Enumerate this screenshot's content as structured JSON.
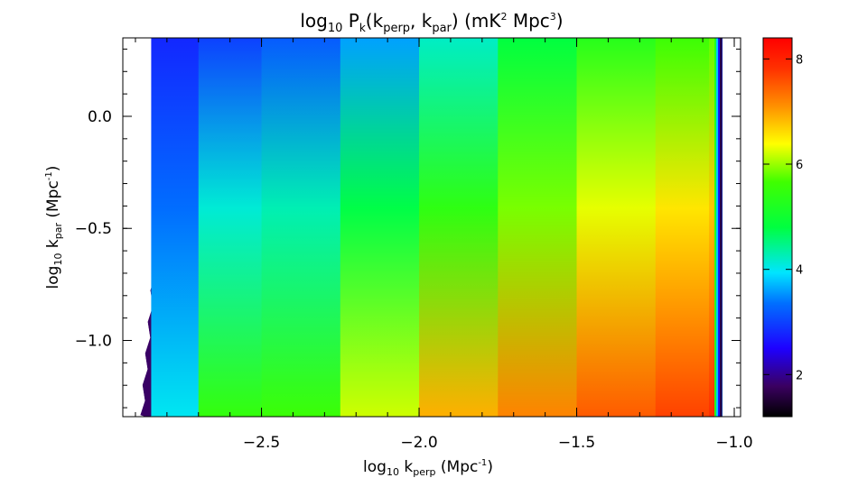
{
  "chart_data": {
    "type": "heatmap",
    "title": {
      "base": "log",
      "base_sub": "10",
      "var": " P",
      "var_sub": "k",
      "args_open": "(k",
      "arg1_sub": "perp",
      "args_sep": ", k",
      "arg2_sub": "par",
      "args_close": ")  (mK",
      "unit_sup1": "2",
      "unit_mid": " Mpc",
      "unit_sup2": "3",
      "unit_close": ")"
    },
    "xlabel": {
      "base": "log",
      "base_sub": "10",
      "var": " k",
      "var_sub": "perp",
      "unit_open": " (Mpc",
      "unit_sup": "-1",
      "unit_close": ")"
    },
    "ylabel": {
      "base": "log",
      "base_sub": "10",
      "var": " k",
      "var_sub": "par",
      "unit_open": " (Mpc",
      "unit_sup": "-1",
      "unit_close": ")"
    },
    "xlim": [
      -2.94,
      -0.98
    ],
    "ylim": [
      -1.34,
      0.35
    ],
    "x_ticks": [
      {
        "value": -2.5,
        "label": "−2.5"
      },
      {
        "value": -2.0,
        "label": "−2.0"
      },
      {
        "value": -1.5,
        "label": "−1.5"
      },
      {
        "value": -1.0,
        "label": "−1.0"
      }
    ],
    "y_ticks": [
      {
        "value": 0.0,
        "label": "0.0"
      },
      {
        "value": -0.5,
        "label": "−0.5"
      },
      {
        "value": -1.0,
        "label": "−1.0"
      }
    ],
    "colorbar": {
      "range": [
        1.2,
        8.4
      ],
      "ticks": [
        {
          "value": 2,
          "label": "2"
        },
        {
          "value": 4,
          "label": "4"
        },
        {
          "value": 6,
          "label": "6"
        },
        {
          "value": 8,
          "label": "8"
        }
      ]
    },
    "data_edges": {
      "x_min_bottom": -2.88,
      "x_min_top": -2.78,
      "x_max": -1.04
    },
    "values_by_x": [
      {
        "x": -2.85,
        "bottom": 4.0,
        "top": 2.8
      },
      {
        "x": -2.7,
        "bottom": 5.5,
        "top": 3.0
      },
      {
        "x": -2.5,
        "bottom": 5.6,
        "top": 3.2
      },
      {
        "x": -2.25,
        "bottom": 6.2,
        "top": 3.6
      },
      {
        "x": -2.0,
        "bottom": 6.9,
        "top": 4.2
      },
      {
        "x": -1.75,
        "bottom": 7.2,
        "top": 4.8
      },
      {
        "x": -1.5,
        "bottom": 7.5,
        "top": 5.3
      },
      {
        "x": -1.25,
        "bottom": 7.7,
        "top": 5.6
      },
      {
        "x": -1.08,
        "bottom": 7.9,
        "top": 5.8
      },
      {
        "x": -1.06,
        "bottom": 3.5,
        "top": 3.0
      }
    ],
    "colormap": "rainbow (black-purple-blue-cyan-green-yellow-orange-red)",
    "grid": false
  }
}
